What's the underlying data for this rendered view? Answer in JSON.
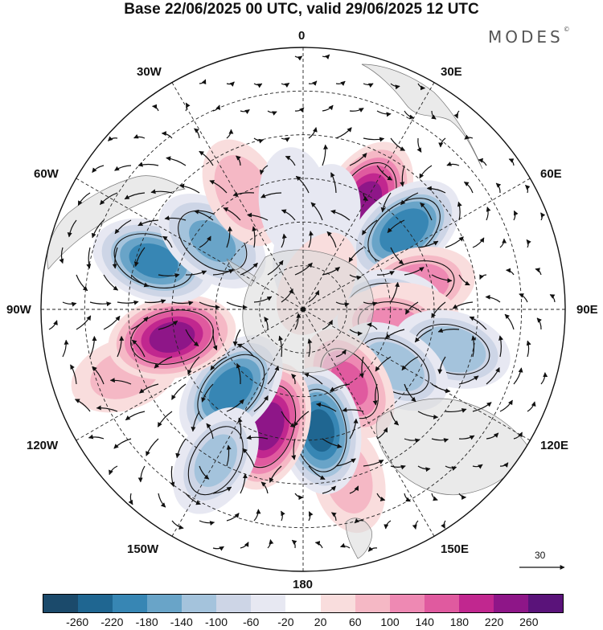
{
  "title": "Base 22/06/2025 00 UTC, valid 29/06/2025 12 UTC",
  "brand": "MODES",
  "brand_mark": "©",
  "longitude_labels": {
    "lon_0": "0",
    "lon_30e": "30E",
    "lon_60e": "60E",
    "lon_90e": "90E",
    "lon_120e": "120E",
    "lon_150e": "150E",
    "lon_180": "180",
    "lon_150w": "150W",
    "lon_120w": "120W",
    "lon_90w": "90W",
    "lon_60w": "60W",
    "lon_30w": "30W"
  },
  "reference_vector": "30",
  "colorbar": {
    "colors": [
      "#1b4a6b",
      "#1f6691",
      "#3786b4",
      "#69a4c8",
      "#a4c3dc",
      "#cdd5e6",
      "#e7e8f2",
      "#ffffff",
      "#f9dddd",
      "#f5b8c5",
      "#ee89b3",
      "#e05a9f",
      "#c1278f",
      "#8e1688",
      "#5a137a"
    ],
    "ticks": [
      "-260",
      "-220",
      "-180",
      "-140",
      "-100",
      "-60",
      "-20",
      "20",
      "60",
      "100",
      "140",
      "180",
      "220",
      "260"
    ]
  },
  "anomaly_cells": [
    {
      "lon": 30,
      "lat": -47,
      "value": 230
    },
    {
      "lon": 52,
      "lat": -46,
      "value": -215
    },
    {
      "lon": 13,
      "lat": -58,
      "value": -50
    },
    {
      "lon": 78,
      "lat": -50,
      "value": 120
    },
    {
      "lon": 88,
      "lat": -62,
      "value": -110
    },
    {
      "lon": 95,
      "lat": -55,
      "value": 60
    },
    {
      "lon": 100,
      "lat": -58,
      "value": 100
    },
    {
      "lon": 105,
      "lat": -37,
      "value": -130
    },
    {
      "lon": 122,
      "lat": -53,
      "value": -120
    },
    {
      "lon": 148,
      "lat": -60,
      "value": 140
    },
    {
      "lon": 165,
      "lat": -30,
      "value": 60
    },
    {
      "lon": 172,
      "lat": -48,
      "value": -230
    },
    {
      "lon": -163,
      "lat": -48,
      "value": 250
    },
    {
      "lon": -138,
      "lat": -53,
      "value": -210
    },
    {
      "lon": -150,
      "lat": -30,
      "value": -100
    },
    {
      "lon": -110,
      "lat": -25,
      "value": 60
    },
    {
      "lon": -102,
      "lat": -44,
      "value": 240
    },
    {
      "lon": -72,
      "lat": -36,
      "value": -200
    },
    {
      "lon": -53,
      "lat": -51,
      "value": -150
    },
    {
      "lon": -27,
      "lat": -45,
      "value": 80
    },
    {
      "lon": -5,
      "lat": -53,
      "value": -40
    },
    {
      "lon": 5,
      "lat": -72,
      "value": -40
    },
    {
      "lon": 28,
      "lat": -80,
      "value": 40
    }
  ]
}
